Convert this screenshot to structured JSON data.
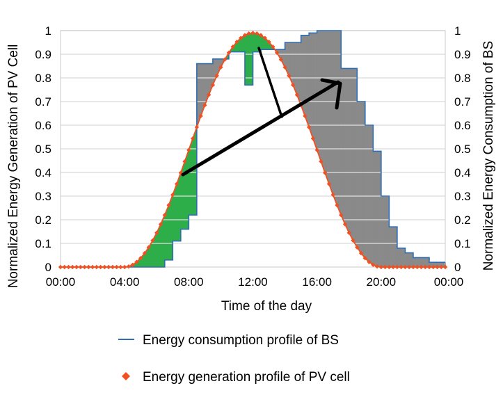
{
  "chart_data": {
    "type": "line",
    "title": "",
    "xlabel": "Time of the day",
    "ylabel_left": "Normalized Energy Generation of PV Cell",
    "ylabel_right": "Normalized Energy Consumption of BS",
    "xlim_hours": [
      0,
      24
    ],
    "ylim": [
      0,
      1
    ],
    "x_ticks": [
      "00:00",
      "04:00",
      "08:00",
      "12:00",
      "16:00",
      "20:00",
      "00:00"
    ],
    "y_ticks": [
      "0",
      "0.1",
      "0.2",
      "0.3",
      "0.4",
      "0.5",
      "0.6",
      "0.7",
      "0.8",
      "0.9",
      "1"
    ],
    "grid": true,
    "legend_placement": "bottom",
    "series": [
      {
        "name": "Energy consumption profile of BS",
        "color": "#2e6db3",
        "step": true,
        "x_hours": [
          0,
          1,
          2,
          3,
          4,
          5,
          6,
          6.5,
          7,
          7.5,
          8,
          8.5,
          9,
          9.5,
          10,
          10.5,
          11,
          11.5,
          12,
          12.5,
          13,
          13.5,
          14,
          14.5,
          15,
          15.5,
          16,
          16.5,
          17,
          17.5,
          18,
          18.5,
          19,
          19.5,
          20,
          20.5,
          21,
          21.5,
          22,
          22.5,
          23,
          23.5
        ],
        "values": [
          0,
          0,
          0,
          0,
          0,
          0,
          0,
          0.03,
          0.11,
          0.16,
          0.22,
          0.86,
          0.86,
          0.88,
          0.88,
          0.91,
          0.91,
          0.77,
          0.91,
          0.92,
          0.92,
          0.92,
          0.95,
          0.95,
          0.98,
          0.99,
          1.0,
          1.0,
          1.0,
          0.84,
          0.84,
          0.7,
          0.6,
          0.49,
          0.3,
          0.17,
          0.08,
          0.06,
          0.04,
          0.04,
          0.02,
          0.02
        ]
      },
      {
        "name": "Energy generation profile of PV cell",
        "color": "#f05022",
        "marker": "diamond",
        "shape": "bell",
        "start_hours": 4,
        "peak_hours": 12,
        "end_hours": 20,
        "peak_value": 0.99,
        "sample_step_hours": 0.25
      }
    ],
    "regions": [
      {
        "description": "surplus",
        "color": "#2eae4a"
      },
      {
        "description": "deficit",
        "color": "#8a8a8a"
      }
    ],
    "arrows_color": "#000000"
  }
}
